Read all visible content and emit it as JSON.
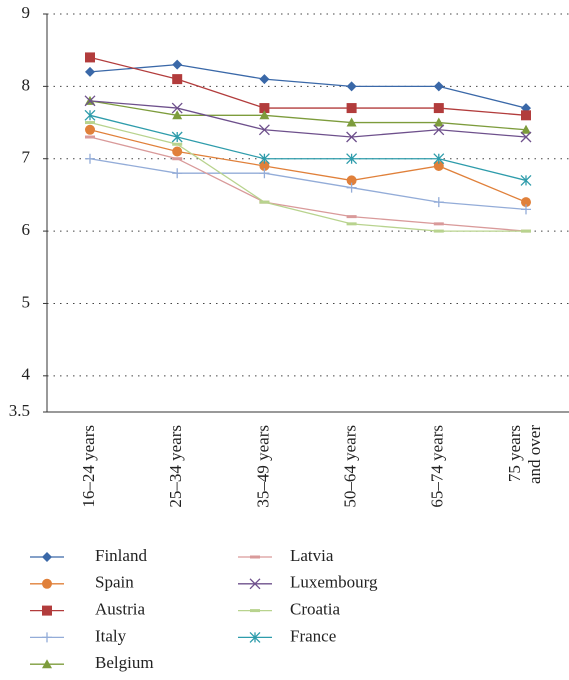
{
  "chart_data": {
    "type": "line",
    "categories": [
      "16–24 years",
      "25–34 years",
      "35–49 years",
      "50–64 years",
      "65–74 years",
      "75 years and over"
    ],
    "series": [
      {
        "name": "Finland",
        "color": "#3a68a8",
        "marker": "diamond",
        "values": [
          8.2,
          8.3,
          8.1,
          8.0,
          8.0,
          7.7
        ]
      },
      {
        "name": "Spain",
        "color": "#e0803a",
        "marker": "circle",
        "values": [
          7.4,
          7.1,
          6.9,
          6.7,
          6.9,
          6.4
        ]
      },
      {
        "name": "Austria",
        "color": "#b23c3c",
        "marker": "square",
        "values": [
          8.4,
          8.1,
          7.7,
          7.7,
          7.7,
          7.6
        ]
      },
      {
        "name": "Italy",
        "color": "#93acd8",
        "marker": "plus",
        "values": [
          7.0,
          6.8,
          6.8,
          6.6,
          6.4,
          6.3
        ]
      },
      {
        "name": "Belgium",
        "color": "#7d9c3c",
        "marker": "triangle",
        "values": [
          7.8,
          7.6,
          7.6,
          7.5,
          7.5,
          7.4
        ]
      },
      {
        "name": "Latvia",
        "color": "#d99a9a",
        "marker": "dash",
        "values": [
          7.3,
          7.0,
          6.4,
          6.2,
          6.1,
          6.0
        ]
      },
      {
        "name": "Luxembourg",
        "color": "#6e508c",
        "marker": "x",
        "values": [
          7.8,
          7.7,
          7.4,
          7.3,
          7.4,
          7.3
        ]
      },
      {
        "name": "Croatia",
        "color": "#b8d38e",
        "marker": "dash",
        "values": [
          7.5,
          7.2,
          6.4,
          6.1,
          6.0,
          6.0
        ]
      },
      {
        "name": "France",
        "color": "#2e9cab",
        "marker": "star",
        "values": [
          7.6,
          7.3,
          7.0,
          7.0,
          7.0,
          6.7
        ]
      }
    ],
    "ylim": [
      3.5,
      9
    ],
    "yticks": [
      3.5,
      4,
      5,
      6,
      7,
      8,
      9
    ],
    "grid": true
  }
}
